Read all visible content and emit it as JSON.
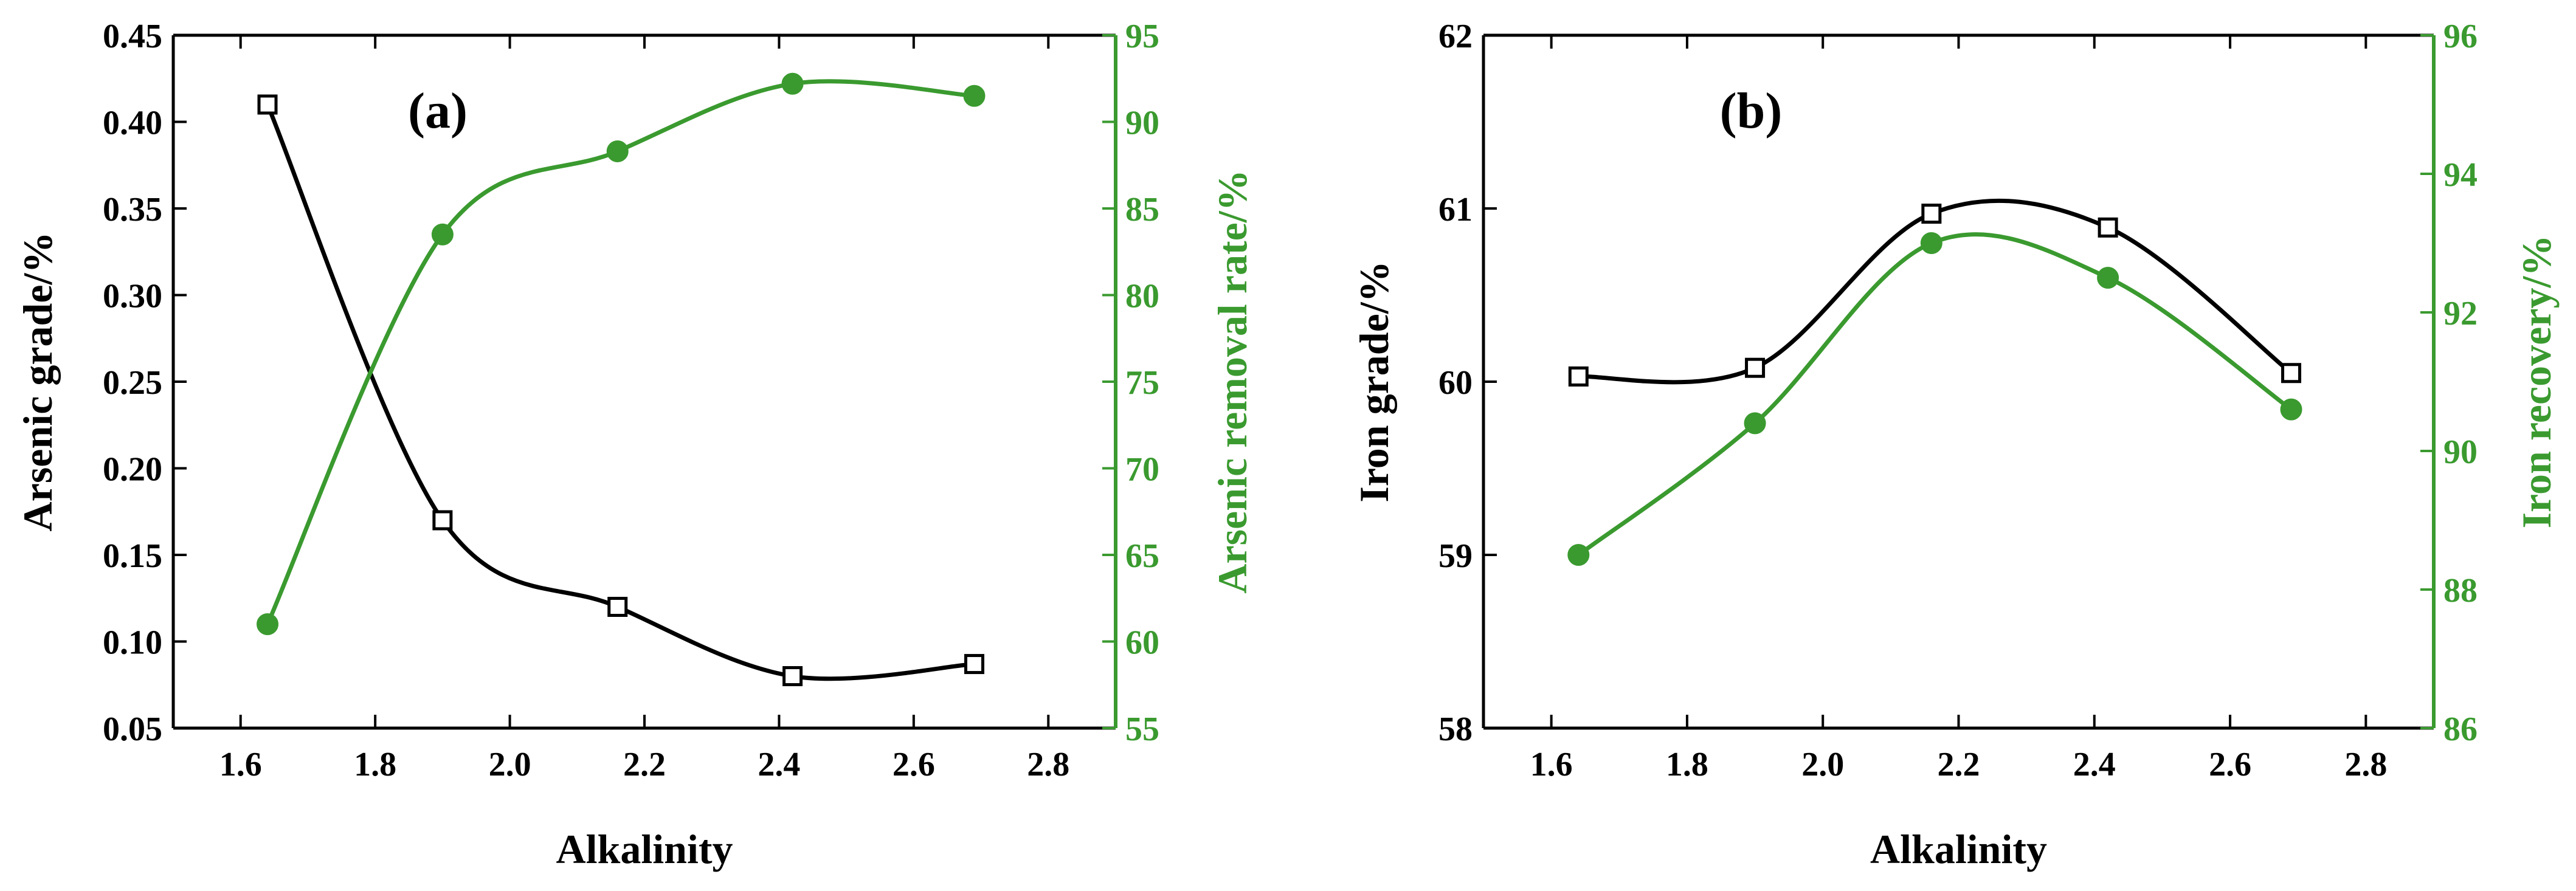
{
  "colors": {
    "left_series": "#000000",
    "right_series": "#3a9a2f",
    "axis": "#000000",
    "right_axis": "#3a9a2f"
  },
  "chart_data": [
    {
      "type": "line",
      "panel_label": "(a)",
      "title": "",
      "xlabel": "Alkalinity",
      "ylabel_left": "Arsenic grade/%",
      "ylabel_right": "Arsenic removal rate/%",
      "xlim": [
        1.5,
        2.9
      ],
      "x_ticks": [
        1.6,
        1.8,
        2.0,
        2.2,
        2.4,
        2.6,
        2.8
      ],
      "x_tick_labels": [
        "1.6",
        "1.8",
        "2.0",
        "2.2",
        "2.4",
        "2.6",
        "2.8"
      ],
      "ylim_left": [
        0.05,
        0.45
      ],
      "y_ticks_left": [
        0.05,
        0.1,
        0.15,
        0.2,
        0.25,
        0.3,
        0.35,
        0.4,
        0.45
      ],
      "y_tick_labels_left": [
        "0.05",
        "0.10",
        "0.15",
        "0.20",
        "0.25",
        "0.30",
        "0.35",
        "0.40",
        "0.45"
      ],
      "ylim_right": [
        55,
        95
      ],
      "y_ticks_right": [
        55,
        60,
        65,
        70,
        75,
        80,
        85,
        90,
        95
      ],
      "y_tick_labels_right": [
        "55",
        "60",
        "65",
        "70",
        "75",
        "80",
        "85",
        "90",
        "95"
      ],
      "x": [
        1.64,
        1.9,
        2.16,
        2.42,
        2.69
      ],
      "series": [
        {
          "name": "Arsenic grade",
          "axis": "left",
          "marker": "open-square",
          "values": [
            0.41,
            0.17,
            0.12,
            0.08,
            0.087
          ]
        },
        {
          "name": "Arsenic removal rate",
          "axis": "right",
          "marker": "filled-circle",
          "values": [
            61.0,
            83.5,
            88.3,
            92.2,
            91.5
          ]
        }
      ]
    },
    {
      "type": "line",
      "panel_label": "(b)",
      "title": "",
      "xlabel": "Alkalinity",
      "ylabel_left": "Iron grade/%",
      "ylabel_right": "Iron recovery/%",
      "xlim": [
        1.5,
        2.9
      ],
      "x_ticks": [
        1.6,
        1.8,
        2.0,
        2.2,
        2.4,
        2.6,
        2.8
      ],
      "x_tick_labels": [
        "1.6",
        "1.8",
        "2.0",
        "2.2",
        "2.4",
        "2.6",
        "2.8"
      ],
      "ylim_left": [
        58,
        62
      ],
      "y_ticks_left": [
        58,
        59,
        60,
        61,
        62
      ],
      "y_tick_labels_left": [
        "58",
        "59",
        "60",
        "61",
        "62"
      ],
      "ylim_right": [
        86,
        96
      ],
      "y_ticks_right": [
        86,
        88,
        90,
        92,
        94,
        96
      ],
      "y_tick_labels_right": [
        "86",
        "88",
        "90",
        "92",
        "94",
        "96"
      ],
      "x": [
        1.64,
        1.9,
        2.16,
        2.42,
        2.69
      ],
      "series": [
        {
          "name": "Iron grade",
          "axis": "left",
          "marker": "open-square",
          "values": [
            60.03,
            60.08,
            60.97,
            60.89,
            60.05
          ]
        },
        {
          "name": "Iron recovery",
          "axis": "right",
          "marker": "filled-circle",
          "values": [
            88.5,
            90.4,
            93.0,
            92.5,
            90.6
          ]
        }
      ]
    }
  ]
}
